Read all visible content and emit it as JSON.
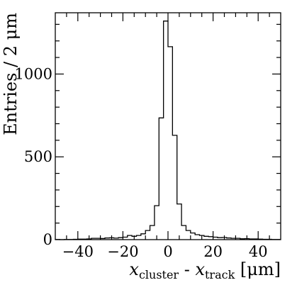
{
  "chart_data": {
    "type": "bar",
    "title": "",
    "xlabel": {
      "main": "x",
      "sub1": "cluster",
      "sep": " - ",
      "main2": "x",
      "sub2": "track",
      "unit": " [μm]"
    },
    "ylabel": "Entries / 2 μm",
    "xlim": [
      -50,
      50
    ],
    "ylim": [
      0,
      1370
    ],
    "bin_width": 2,
    "x_ticks": [
      -40,
      -20,
      0,
      20,
      40
    ],
    "x_tick_labels": [
      "−40",
      "−20",
      "0",
      "20",
      "40"
    ],
    "y_ticks": [
      0,
      500,
      1000
    ],
    "y_tick_labels": [
      "0",
      "500",
      "1000"
    ],
    "bin_edges": [
      -50,
      -48,
      -46,
      -44,
      -42,
      -40,
      -38,
      -36,
      -34,
      -32,
      -30,
      -28,
      -26,
      -24,
      -22,
      -20,
      -18,
      -16,
      -14,
      -12,
      -10,
      -8,
      -6,
      -4,
      -2,
      0,
      2,
      4,
      6,
      8,
      10,
      12,
      14,
      16,
      18,
      20,
      22,
      24,
      26,
      28,
      30,
      32,
      34,
      36,
      38,
      40,
      42,
      44,
      46,
      48,
      50
    ],
    "values": [
      1,
      0,
      1,
      1,
      2,
      3,
      3,
      4,
      8,
      8,
      7,
      10,
      11,
      9,
      12,
      15,
      25,
      20,
      25,
      35,
      55,
      85,
      205,
      735,
      1320,
      1165,
      630,
      215,
      85,
      55,
      40,
      30,
      25,
      20,
      18,
      15,
      12,
      13,
      10,
      8,
      8,
      5,
      6,
      4,
      4,
      3,
      2,
      2,
      1,
      1
    ]
  },
  "colors": {
    "line": "#000000",
    "background": "#ffffff"
  }
}
